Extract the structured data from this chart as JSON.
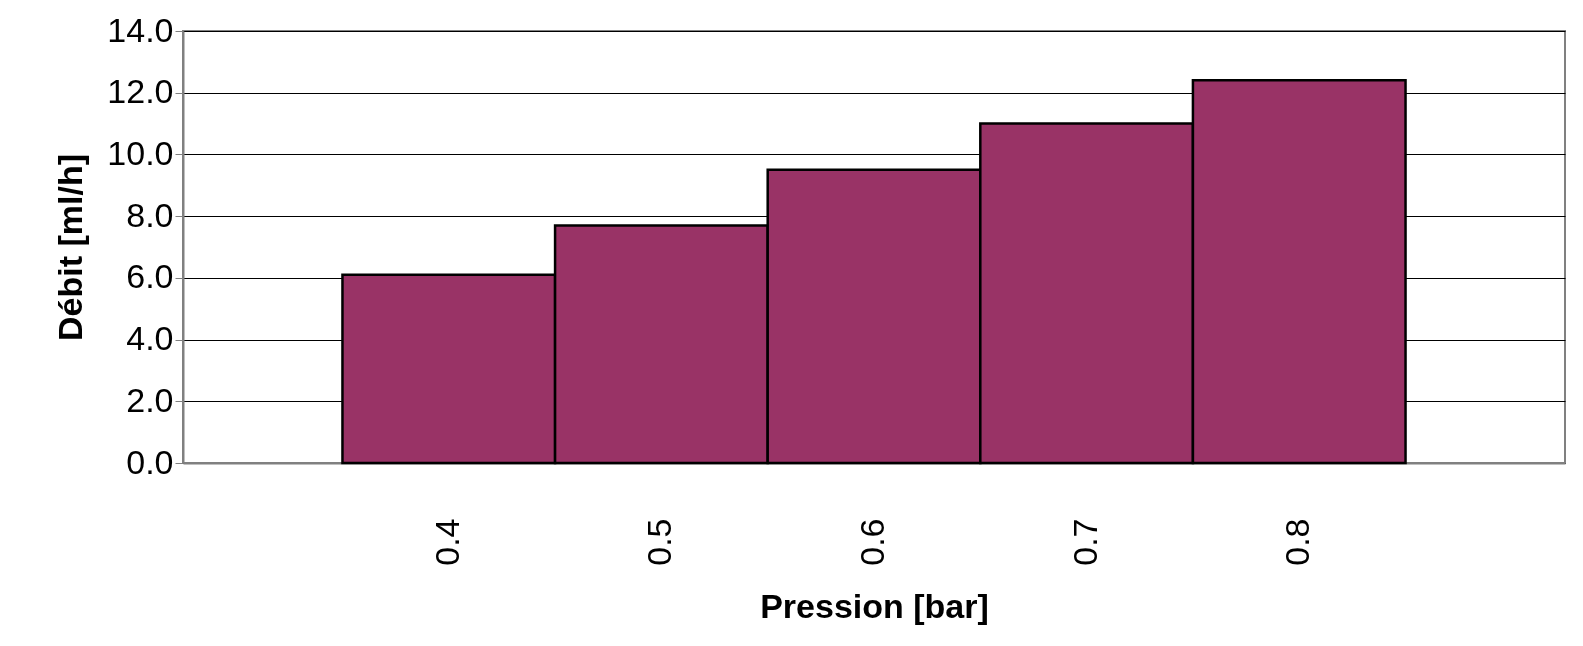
{
  "chart_data": {
    "type": "bar",
    "xlabel": "Pression [bar]",
    "ylabel": "Débit [ml/h]",
    "categories": [
      "0.4",
      "0.5",
      "0.6",
      "0.7",
      "0.8"
    ],
    "values": [
      6.1,
      7.7,
      9.5,
      11.0,
      12.4
    ],
    "color": "#993366",
    "ylim": [
      0,
      14
    ],
    "yticks": [
      {
        "value": 0,
        "label": "0.0"
      },
      {
        "value": 2,
        "label": "2.0"
      },
      {
        "value": 4,
        "label": "4.0"
      },
      {
        "value": 6,
        "label": "6.0"
      },
      {
        "value": 8,
        "label": "8.0"
      },
      {
        "value": 10,
        "label": "10.0"
      },
      {
        "value": 12,
        "label": "12.0"
      },
      {
        "value": 14,
        "label": "14.0"
      }
    ],
    "grid": "y"
  }
}
